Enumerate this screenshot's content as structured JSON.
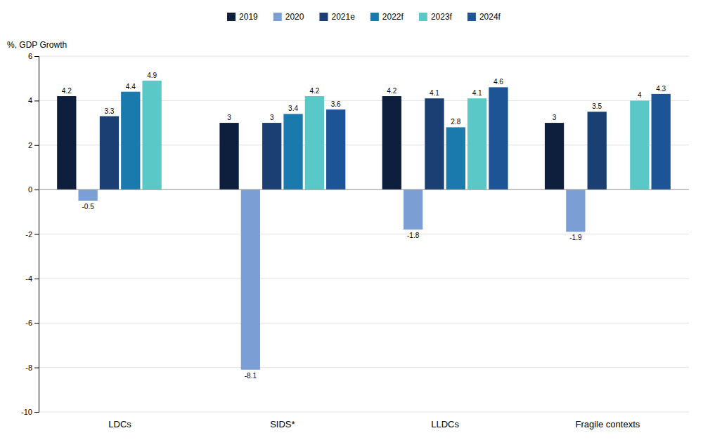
{
  "chart_data": {
    "type": "bar",
    "ylabel": "%, GDP Growth",
    "categories": [
      "LDCs",
      "SIDS*",
      "LLDCs",
      "Fragile contexts"
    ],
    "series": [
      {
        "name": "2019",
        "color": "#0d1f3c",
        "values": [
          4.2,
          3.0,
          4.2,
          3.0
        ]
      },
      {
        "name": "2020",
        "color": "#7b9fd4",
        "values": [
          -0.5,
          -8.1,
          -1.8,
          -1.9
        ]
      },
      {
        "name": "2021e",
        "color": "#1b3f72",
        "values": [
          3.3,
          3.0,
          4.1,
          3.5
        ]
      },
      {
        "name": "2022f",
        "color": "#1a7aad",
        "values": [
          4.4,
          3.4,
          2.8,
          null
        ]
      },
      {
        "name": "2023f",
        "color": "#5bc8c8",
        "values": [
          4.9,
          4.2,
          4.1,
          4.0
        ]
      },
      {
        "name": "2024f",
        "color": "#1d5496",
        "values": [
          null,
          3.6,
          4.6,
          4.3
        ]
      }
    ],
    "ylim": [
      -10,
      6
    ],
    "yticks": [
      -10,
      -8,
      -6,
      -4,
      -2,
      0,
      2,
      4,
      6
    ],
    "grid": true,
    "data_labels": true,
    "legend": "top"
  }
}
